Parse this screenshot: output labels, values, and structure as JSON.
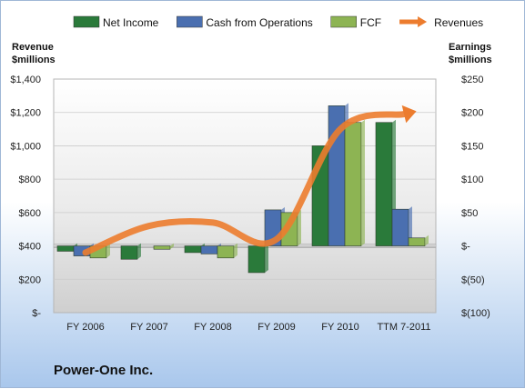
{
  "chart_data": {
    "type": "bar",
    "categories": [
      "FY 2006",
      "FY 2007",
      "FY 2008",
      "FY 2009",
      "FY 2010",
      "TTM 7-2011"
    ],
    "series": [
      {
        "name": "Net Income",
        "axis": "right",
        "color": "#2a7a3a",
        "values": [
          -8,
          -20,
          -10,
          -40,
          150,
          185
        ]
      },
      {
        "name": "Cash from Operations",
        "axis": "right",
        "color": "#4a6fb0",
        "values": [
          -15,
          0,
          -12,
          54,
          210,
          55
        ]
      },
      {
        "name": "FCF",
        "axis": "right",
        "color": "#8db453",
        "values": [
          -18,
          -5,
          -18,
          50,
          185,
          12
        ]
      },
      {
        "name": "Revenues",
        "axis": "left",
        "type": "line",
        "color": "#ec7c2e",
        "values": [
          360,
          520,
          540,
          440,
          1100,
          1190
        ]
      }
    ],
    "left_axis": {
      "title": "Revenue\n$millions",
      "ylim": [
        0,
        1400
      ],
      "ticks": [
        "$-",
        "$200",
        "$400",
        "$600",
        "$800",
        "$1,000",
        "$1,200",
        "$1,400"
      ]
    },
    "right_axis": {
      "title": "Earnings\n$millions",
      "ylim": [
        -100,
        250
      ],
      "ticks": [
        "$(100)",
        "$(50)",
        "$-",
        "$50",
        "$100",
        "$150",
        "$200",
        "$250"
      ]
    },
    "legend_position": "top",
    "grid": true
  },
  "company": "Power-One Inc."
}
